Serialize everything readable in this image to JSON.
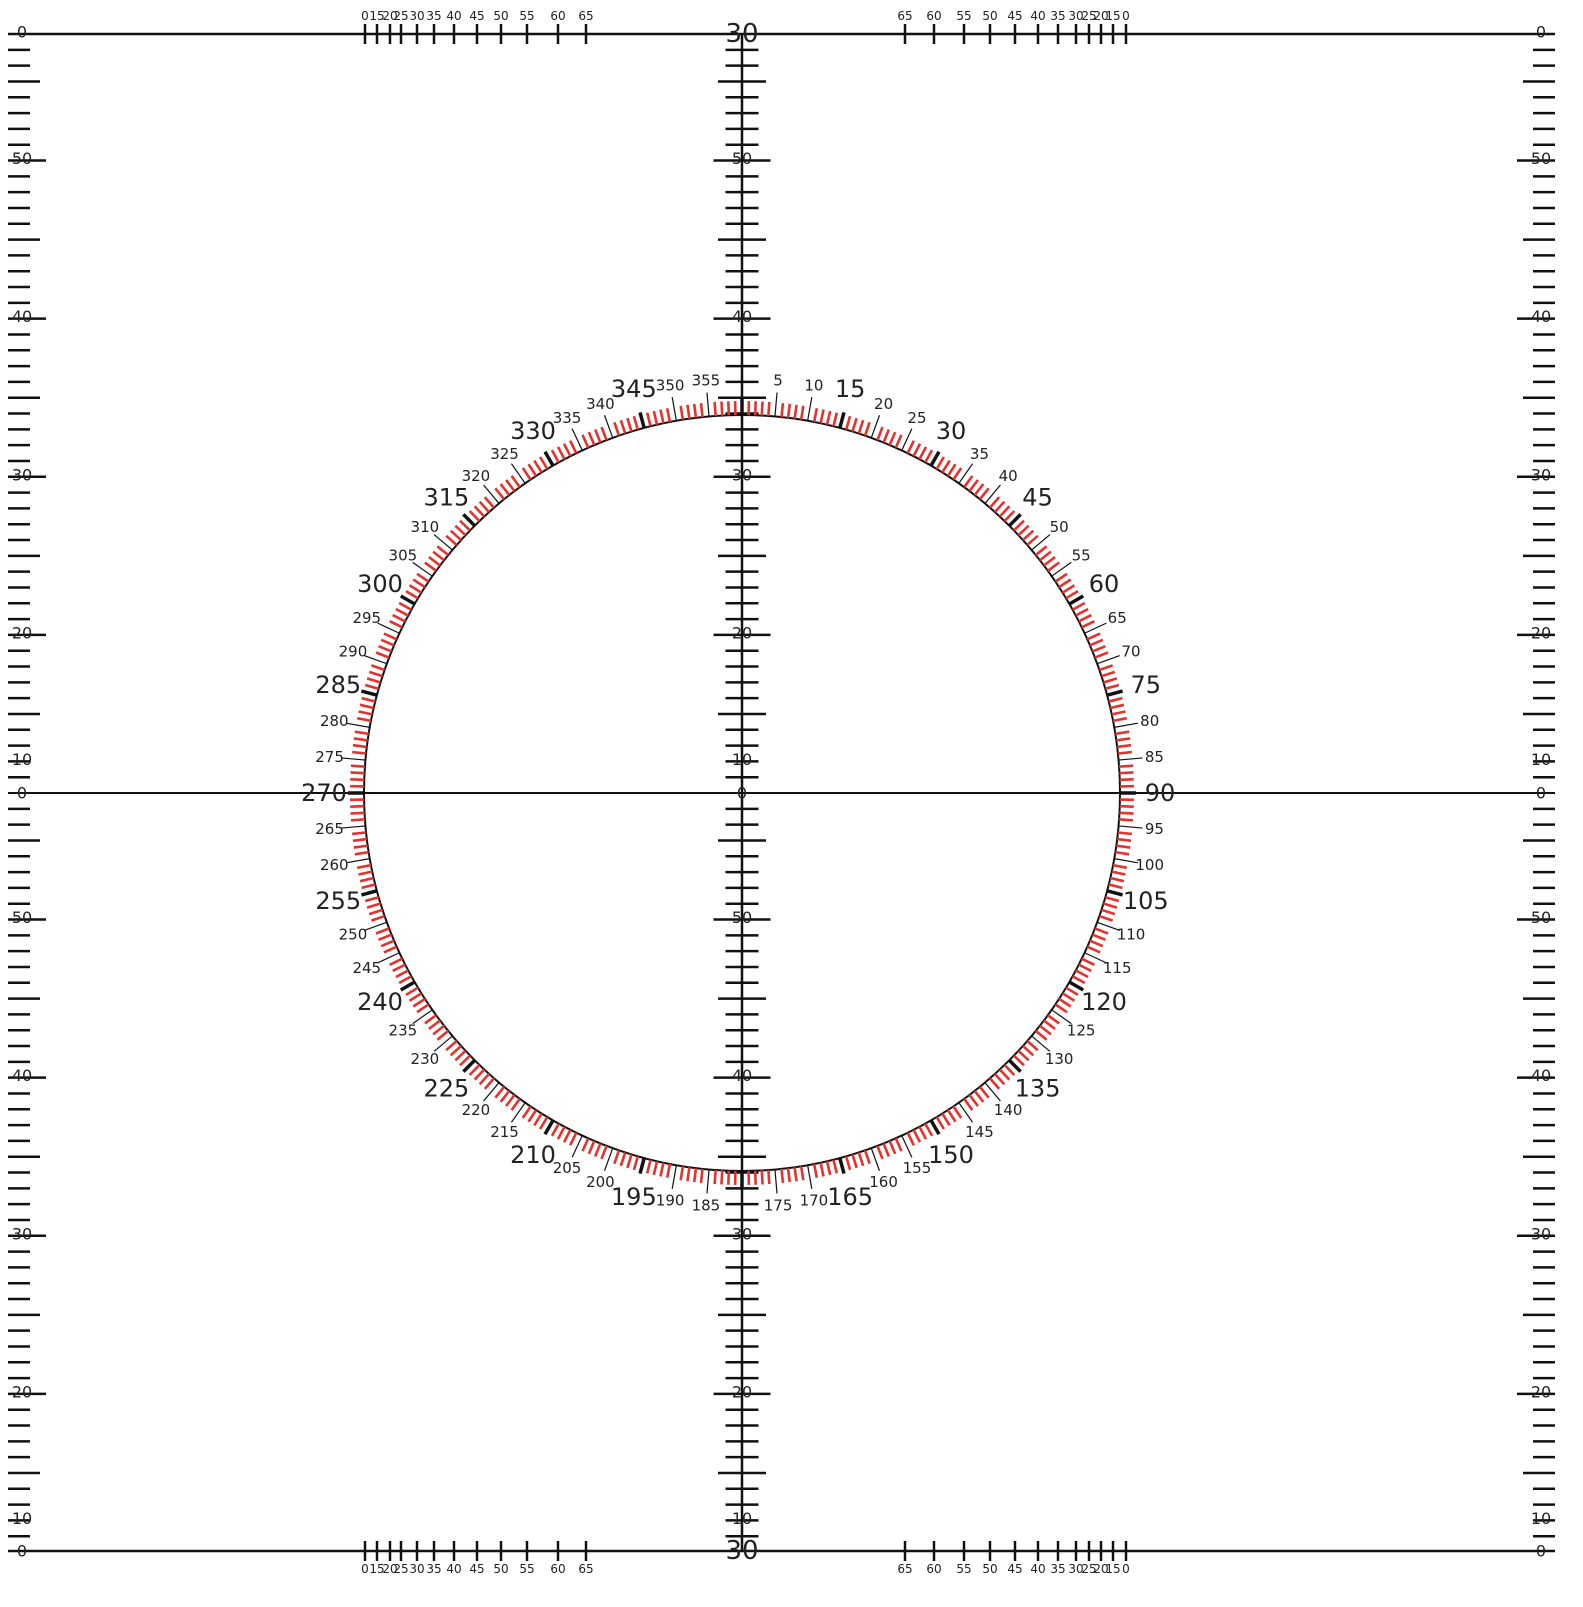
{
  "colors": {
    "ink": "#111111",
    "fine_tick": "#e5322d"
  },
  "side_scale": {
    "top_half_labels": [
      "0",
      "50",
      "40",
      "30",
      "20",
      "10",
      "0"
    ],
    "bottom_half_labels": [
      "50",
      "40",
      "30",
      "20",
      "10",
      "0"
    ]
  },
  "center_scale": {
    "top_label": "30",
    "upper_labels": [
      "50",
      "40",
      "30",
      "20",
      "10"
    ],
    "middle_label": "0",
    "lower_labels": [
      "50",
      "40",
      "30",
      "20",
      "10"
    ],
    "bottom_label": "30"
  },
  "edge_scale": {
    "left_top_labels": [
      "0",
      "15",
      "20",
      "25",
      "30",
      "35",
      "40",
      "45",
      "50",
      "55",
      "60",
      "65"
    ],
    "right_top_labels": [
      "65",
      "60",
      "55",
      "50",
      "45",
      "40",
      "35",
      "30",
      "25",
      "20",
      "15",
      "0"
    ],
    "left_bottom_labels": [
      "0",
      "15",
      "20",
      "25",
      "30",
      "35",
      "40",
      "45",
      "50",
      "55",
      "60",
      "65"
    ],
    "right_bottom_labels": [
      "65",
      "60",
      "55",
      "50",
      "45",
      "40",
      "35",
      "30",
      "25",
      "20",
      "15",
      "0"
    ]
  },
  "compass": {
    "labels": [
      "5",
      "10",
      "15",
      "20",
      "25",
      "30",
      "35",
      "40",
      "45",
      "50",
      "55",
      "60",
      "65",
      "70",
      "75",
      "80",
      "85",
      "90",
      "95",
      "100",
      "105",
      "110",
      "115",
      "120",
      "125",
      "130",
      "135",
      "140",
      "145",
      "150",
      "155",
      "160",
      "165",
      "170",
      "175",
      "185",
      "190",
      "195",
      "200",
      "205",
      "210",
      "215",
      "220",
      "225",
      "230",
      "235",
      "240",
      "245",
      "250",
      "255",
      "260",
      "265",
      "270",
      "275",
      "280",
      "285",
      "290",
      "295",
      "300",
      "305",
      "310",
      "315",
      "320",
      "325",
      "330",
      "335",
      "340",
      "345",
      "350",
      "355"
    ],
    "major_every_degrees": 15,
    "minor_every_degrees": 5,
    "fine_every_degrees": 1
  }
}
